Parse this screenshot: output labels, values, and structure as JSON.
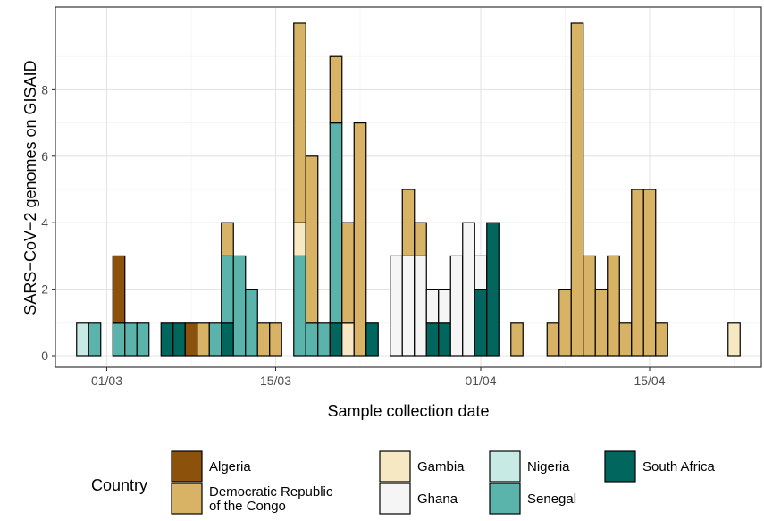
{
  "chart_data": {
    "type": "bar",
    "stacked": true,
    "xlabel": "Sample collection date",
    "ylabel": "SARS−CoV−2 genomes on GISAID",
    "ylim": [
      0,
      10.2
    ],
    "y_ticks": [
      0,
      2,
      4,
      6,
      8
    ],
    "x_ticks": [
      "01/03",
      "15/03",
      "01/04",
      "15/04"
    ],
    "grid": true,
    "legend": {
      "title": "Country",
      "position": "bottom",
      "entries": [
        {
          "key": "Algeria",
          "label_lines": [
            "Algeria"
          ]
        },
        {
          "key": "Democratic Republic of the Congo",
          "label_lines": [
            "Democratic Republic",
            "of the Congo"
          ]
        },
        {
          "key": "Gambia",
          "label_lines": [
            "Gambia"
          ]
        },
        {
          "key": "Ghana",
          "label_lines": [
            "Ghana"
          ]
        },
        {
          "key": "Nigeria",
          "label_lines": [
            "Nigeria"
          ]
        },
        {
          "key": "Senegal",
          "label_lines": [
            "Senegal"
          ]
        },
        {
          "key": "South Africa",
          "label_lines": [
            "South Africa"
          ]
        }
      ]
    },
    "colors": {
      "Algeria": "#8c510a",
      "Democratic Republic of the Congo": "#d8b365",
      "Gambia": "#f6e8c3",
      "Ghana": "#f5f5f5",
      "Nigeria": "#c7eae5",
      "Senegal": "#5ab4ac",
      "South Africa": "#01665e"
    },
    "stack_order": [
      "South Africa",
      "Senegal",
      "Nigeria",
      "Ghana",
      "Gambia",
      "Democratic Republic of the Congo",
      "Algeria"
    ],
    "bars": [
      {
        "date": "27/02",
        "counts": {
          "Nigeria": 1
        }
      },
      {
        "date": "28/02",
        "counts": {
          "Senegal": 1
        }
      },
      {
        "date": "02/03",
        "counts": {
          "Senegal": 1,
          "Algeria": 2
        }
      },
      {
        "date": "03/03",
        "counts": {
          "Senegal": 1
        }
      },
      {
        "date": "04/03",
        "counts": {
          "Senegal": 1
        }
      },
      {
        "date": "06/03",
        "counts": {
          "South Africa": 1
        }
      },
      {
        "date": "07/03",
        "counts": {
          "South Africa": 1
        }
      },
      {
        "date": "08/03",
        "counts": {
          "Algeria": 1
        }
      },
      {
        "date": "09/03",
        "counts": {
          "Democratic Republic of the Congo": 1
        }
      },
      {
        "date": "10/03",
        "counts": {
          "Senegal": 1
        }
      },
      {
        "date": "11/03",
        "counts": {
          "South Africa": 1,
          "Senegal": 2,
          "Democratic Republic of the Congo": 1
        }
      },
      {
        "date": "12/03",
        "counts": {
          "Senegal": 3
        }
      },
      {
        "date": "13/03",
        "counts": {
          "Senegal": 2
        }
      },
      {
        "date": "14/03",
        "counts": {
          "Democratic Republic of the Congo": 1
        }
      },
      {
        "date": "15/03",
        "counts": {
          "Democratic Republic of the Congo": 1
        }
      },
      {
        "date": "17/03",
        "counts": {
          "Senegal": 3,
          "Gambia": 1,
          "Democratic Republic of the Congo": 6
        }
      },
      {
        "date": "18/03",
        "counts": {
          "Senegal": 1,
          "Democratic Republic of the Congo": 5
        }
      },
      {
        "date": "19/03",
        "counts": {
          "Senegal": 1
        }
      },
      {
        "date": "20/03",
        "counts": {
          "South Africa": 1,
          "Senegal": 6,
          "Democratic Republic of the Congo": 2
        }
      },
      {
        "date": "21/03",
        "counts": {
          "Gambia": 1,
          "Democratic Republic of the Congo": 3
        }
      },
      {
        "date": "22/03",
        "counts": {
          "Democratic Republic of the Congo": 7
        }
      },
      {
        "date": "23/03",
        "counts": {
          "South Africa": 1
        }
      },
      {
        "date": "25/03",
        "counts": {
          "Ghana": 3
        }
      },
      {
        "date": "26/03",
        "counts": {
          "Ghana": 3,
          "Democratic Republic of the Congo": 2
        }
      },
      {
        "date": "27/03",
        "counts": {
          "Ghana": 3,
          "Democratic Republic of the Congo": 1
        }
      },
      {
        "date": "28/03",
        "counts": {
          "South Africa": 1,
          "Ghana": 1
        }
      },
      {
        "date": "29/03",
        "counts": {
          "South Africa": 1,
          "Ghana": 1
        }
      },
      {
        "date": "30/03",
        "counts": {
          "Ghana": 3
        }
      },
      {
        "date": "31/03",
        "counts": {
          "Ghana": 4
        }
      },
      {
        "date": "01/04",
        "counts": {
          "South Africa": 2,
          "Ghana": 1
        }
      },
      {
        "date": "02/04",
        "counts": {
          "South Africa": 4
        }
      },
      {
        "date": "04/04",
        "counts": {
          "Democratic Republic of the Congo": 1
        }
      },
      {
        "date": "07/04",
        "counts": {
          "Democratic Republic of the Congo": 1
        }
      },
      {
        "date": "08/04",
        "counts": {
          "Democratic Republic of the Congo": 2
        }
      },
      {
        "date": "09/04",
        "counts": {
          "Democratic Republic of the Congo": 10
        }
      },
      {
        "date": "10/04",
        "counts": {
          "Democratic Republic of the Congo": 3
        }
      },
      {
        "date": "11/04",
        "counts": {
          "Democratic Republic of the Congo": 2
        }
      },
      {
        "date": "12/04",
        "counts": {
          "Democratic Republic of the Congo": 3
        }
      },
      {
        "date": "13/04",
        "counts": {
          "Democratic Republic of the Congo": 1
        }
      },
      {
        "date": "14/04",
        "counts": {
          "Democratic Republic of the Congo": 5
        }
      },
      {
        "date": "15/04",
        "counts": {
          "Democratic Republic of the Congo": 5
        }
      },
      {
        "date": "16/04",
        "counts": {
          "Democratic Republic of the Congo": 1
        }
      },
      {
        "date": "22/04",
        "counts": {
          "Gambia": 1
        }
      }
    ]
  }
}
